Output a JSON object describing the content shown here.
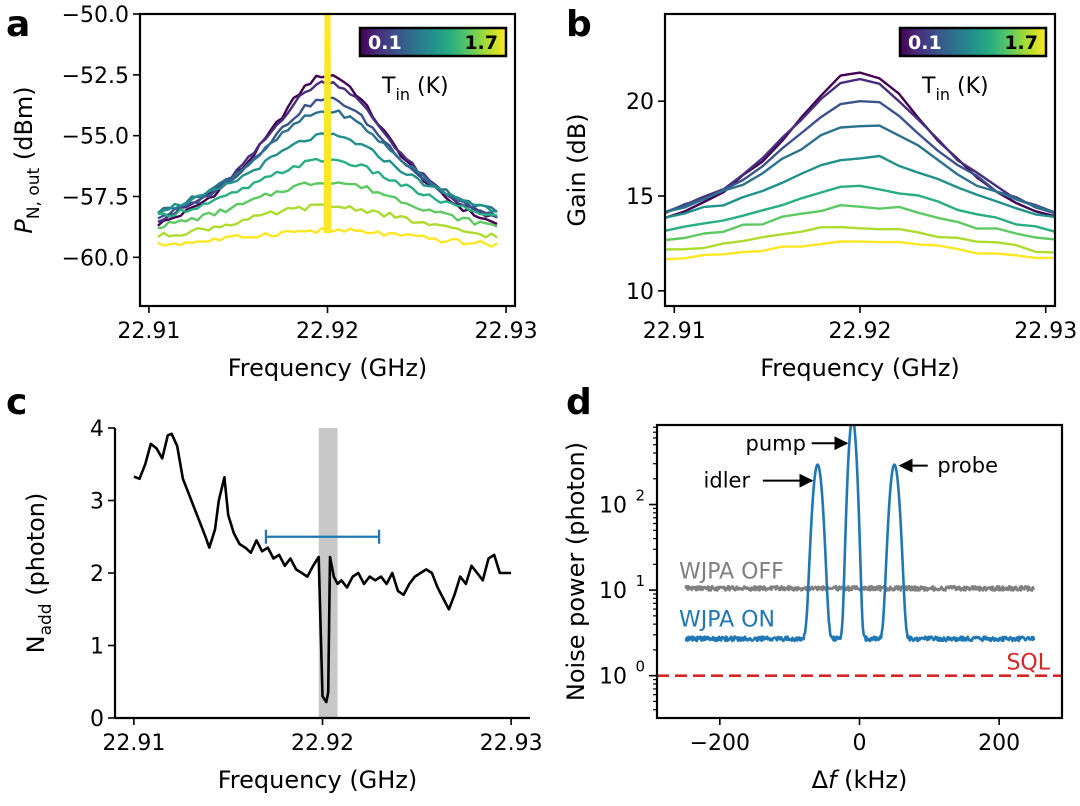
{
  "figure": {
    "panels": [
      "a",
      "b",
      "c",
      "d"
    ]
  },
  "colors": {
    "viridis": [
      "#440154",
      "#472f7d",
      "#3b528b",
      "#2c728e",
      "#21918c",
      "#28ae80",
      "#5ec962",
      "#addc30",
      "#fde725"
    ],
    "black": "#000000",
    "blue": "#1f77b4",
    "gray": "#808080",
    "red": "#d62728",
    "shade": "#c8c8c8"
  },
  "chart_data": [
    {
      "panel": "a",
      "type": "line",
      "xlabel": "Frequency (GHz)",
      "ylabel_main": "P",
      "ylabel_sub": "N, out",
      "ylabel_unit": " (dBm)",
      "xlim": [
        22.9095,
        22.9305
      ],
      "ylim": [
        -62.0,
        -50.0
      ],
      "xticks": [
        22.91,
        22.92,
        22.93
      ],
      "xtick_labels": [
        "22.91",
        "22.92",
        "22.93"
      ],
      "yticks": [
        -60.0,
        -57.5,
        -55.0,
        -52.5,
        -50.0
      ],
      "ytick_labels": [
        "−60.0",
        "−57.5",
        "−55.0",
        "−52.5",
        "−50.0"
      ],
      "x_center": 22.92,
      "x_range": [
        22.9105,
        22.9295
      ],
      "colorbar": {
        "min_label": "0.1",
        "max_label": "1.7",
        "label_main": "T",
        "label_sub": "in",
        "label_unit": " (K)"
      },
      "series_note_temperatures_increase_with_index": true,
      "series": [
        {
          "peak": -52.5,
          "edge": -60.2,
          "width": 0.0048,
          "lw": 2.4
        },
        {
          "peak": -52.8,
          "edge": -60.0,
          "width": 0.005,
          "lw": 2.4
        },
        {
          "peak": -53.5,
          "edge": -59.8,
          "width": 0.0052,
          "lw": 2.4
        },
        {
          "peak": -54.0,
          "edge": -59.5,
          "width": 0.0055,
          "lw": 2.4
        },
        {
          "peak": -55.0,
          "edge": -59.2,
          "width": 0.0058,
          "lw": 2.4
        },
        {
          "peak": -56.0,
          "edge": -59.3,
          "width": 0.0062,
          "lw": 2.4
        },
        {
          "peak": -56.9,
          "edge": -59.6,
          "width": 0.0066,
          "lw": 2.4
        },
        {
          "peak": -57.9,
          "edge": -59.8,
          "width": 0.007,
          "lw": 2.4
        },
        {
          "peak": -58.9,
          "edge": -59.9,
          "width": 0.008,
          "lw": 2.4
        }
      ],
      "spike": {
        "x": 22.92,
        "top": -50.0,
        "base": -59.0
      }
    },
    {
      "panel": "b",
      "type": "line",
      "xlabel": "Frequency (GHz)",
      "ylabel": "Gain (dB)",
      "xlim": [
        22.9095,
        22.9305
      ],
      "ylim": [
        9.2,
        24.6
      ],
      "xticks": [
        22.91,
        22.92,
        22.93
      ],
      "xtick_labels": [
        "22.91",
        "22.92",
        "22.93"
      ],
      "yticks": [
        10,
        15,
        20
      ],
      "ytick_labels": [
        "10",
        "15",
        "20"
      ],
      "x_center": 22.92,
      "x_range": [
        22.9095,
        22.9305
      ],
      "colorbar": {
        "min_label": "0.1",
        "max_label": "1.7",
        "label_main": "T",
        "label_sub": "in",
        "label_unit": " (K)"
      },
      "series": [
        {
          "peak": 21.6,
          "edge": 11.8,
          "width": 0.0055,
          "lw": 2.4
        },
        {
          "peak": 21.2,
          "edge": 12.0,
          "width": 0.0057,
          "lw": 2.4
        },
        {
          "peak": 20.1,
          "edge": 12.2,
          "width": 0.006,
          "lw": 2.4
        },
        {
          "peak": 18.8,
          "edge": 12.5,
          "width": 0.0063,
          "lw": 2.4
        },
        {
          "peak": 17.1,
          "edge": 12.6,
          "width": 0.0066,
          "lw": 2.4
        },
        {
          "peak": 15.5,
          "edge": 12.2,
          "width": 0.007,
          "lw": 2.4
        },
        {
          "peak": 14.5,
          "edge": 11.8,
          "width": 0.0075,
          "lw": 2.4
        },
        {
          "peak": 13.4,
          "edge": 11.3,
          "width": 0.008,
          "lw": 2.4
        },
        {
          "peak": 12.6,
          "edge": 10.9,
          "width": 0.009,
          "lw": 2.4
        }
      ]
    },
    {
      "panel": "c",
      "type": "line",
      "xlabel": "Frequency (GHz)",
      "ylabel_main": "N",
      "ylabel_sub": "add",
      "ylabel_unit": " (photon)",
      "xlim": [
        22.909,
        22.931
      ],
      "ylim": [
        0,
        4
      ],
      "xticks": [
        22.91,
        22.92,
        22.93
      ],
      "xtick_labels": [
        "22.91",
        "22.92",
        "22.93"
      ],
      "yticks": [
        0,
        1,
        2,
        3,
        4
      ],
      "ytick_labels": [
        "0",
        "1",
        "2",
        "3",
        "4"
      ],
      "shaded_band": [
        22.9198,
        22.9208
      ],
      "errorbar": {
        "x_from": 22.917,
        "x_to": 22.923,
        "y": 2.5
      },
      "x": [
        22.91,
        22.9103,
        22.9106,
        22.9109,
        22.9112,
        22.9115,
        22.9118,
        22.912,
        22.9123,
        22.9126,
        22.9129,
        22.9132,
        22.9135,
        22.9138,
        22.914,
        22.9143,
        22.9145,
        22.9148,
        22.915,
        22.9153,
        22.9156,
        22.9159,
        22.9162,
        22.9165,
        22.9168,
        22.9171,
        22.9174,
        22.9177,
        22.918,
        22.9183,
        22.9186,
        22.9189,
        22.9192,
        22.9195,
        22.9198,
        22.92,
        22.9202,
        22.9203,
        22.9204,
        22.9206,
        22.9208,
        22.921,
        22.9213,
        22.9216,
        22.9219,
        22.9222,
        22.9225,
        22.9228,
        22.9231,
        22.9234,
        22.9237,
        22.924,
        22.9243,
        22.9246,
        22.9249,
        22.9252,
        22.9255,
        22.9258,
        22.9261,
        22.9264,
        22.9267,
        22.927,
        22.9273,
        22.9276,
        22.9279,
        22.9282,
        22.9285,
        22.9288,
        22.9291,
        22.9294,
        22.9297,
        22.93
      ],
      "y": [
        3.33,
        3.3,
        3.5,
        3.78,
        3.72,
        3.58,
        3.9,
        3.92,
        3.75,
        3.3,
        3.1,
        2.9,
        2.7,
        2.5,
        2.35,
        2.6,
        3.0,
        3.32,
        2.8,
        2.55,
        2.4,
        2.35,
        2.28,
        2.45,
        2.3,
        2.35,
        2.2,
        2.25,
        2.1,
        2.2,
        2.05,
        2.0,
        1.95,
        2.1,
        2.22,
        0.3,
        0.22,
        0.35,
        2.22,
        1.95,
        1.85,
        1.9,
        1.8,
        1.95,
        2.0,
        1.85,
        1.95,
        1.9,
        1.95,
        1.85,
        2.0,
        1.75,
        1.7,
        1.85,
        1.95,
        2.0,
        2.05,
        2.0,
        1.8,
        1.65,
        1.5,
        1.7,
        1.95,
        1.85,
        2.1,
        2.0,
        1.9,
        2.2,
        2.25,
        2.0,
        2.0,
        2.0
      ],
      "line_color_key": "black"
    },
    {
      "panel": "d",
      "type": "line",
      "xlabel_main": "Δ",
      "xlabel_italic": "f",
      "xlabel_unit": " (kHz)",
      "ylabel": "Noise power (photon)",
      "ylog": true,
      "xlim": [
        -290,
        290
      ],
      "ylim": [
        0.32,
        850
      ],
      "xticks": [
        -200,
        0,
        200
      ],
      "xtick_labels": [
        "−200",
        "0",
        "200"
      ],
      "yticks": [
        1,
        10,
        100
      ],
      "ytick_labels_base": [
        "10",
        "10",
        "10"
      ],
      "ytick_labels_exp": [
        "0",
        "1",
        "2"
      ],
      "series": [
        {
          "name": "WJPA OFF",
          "color_key": "gray",
          "baseline": 10.5,
          "peaks": []
        },
        {
          "name": "WJPA ON",
          "color_key": "blue",
          "baseline": 2.7,
          "peaks": [
            {
              "center": -60,
              "height": 290,
              "width": 5
            },
            {
              "center": -10,
              "height": 1000,
              "width": 4
            },
            {
              "center": 50,
              "height": 290,
              "width": 5
            }
          ]
        }
      ],
      "sql_line": {
        "label": "SQL",
        "y": 1.0,
        "color_key": "red"
      },
      "x_range": [
        -250,
        250
      ],
      "annotations": [
        {
          "label": "pump",
          "text_x": -120,
          "text_y": 520,
          "arrow_to_x": -18,
          "arrow_to_y": 520
        },
        {
          "label": "idler",
          "text_x": -190,
          "text_y": 190,
          "arrow_to_x": -68,
          "arrow_to_y": 190
        },
        {
          "label": "probe",
          "text_x": 155,
          "text_y": 285,
          "arrow_to_x": 58,
          "arrow_to_y": 285
        }
      ]
    }
  ]
}
